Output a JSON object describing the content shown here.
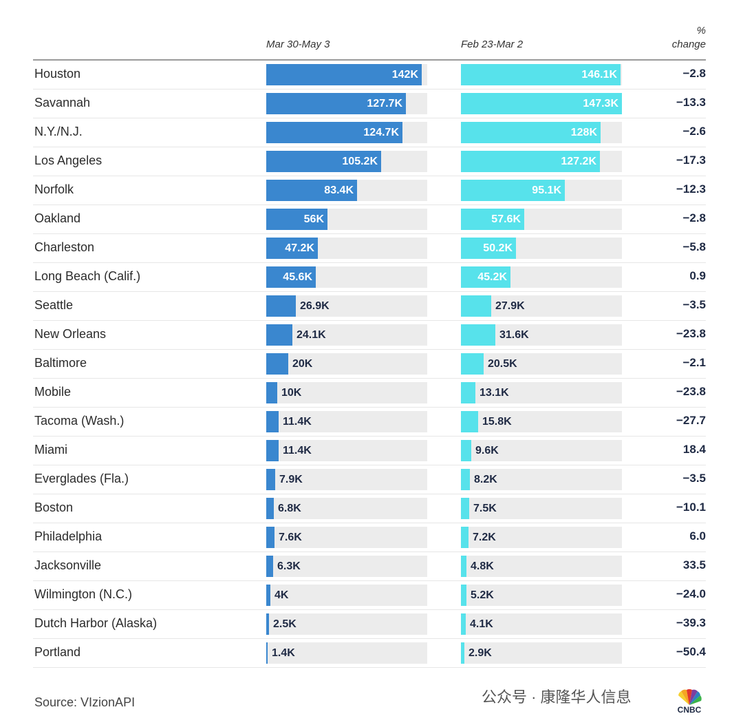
{
  "chart_data": {
    "type": "bar",
    "title": "",
    "columns": [
      "Mar 30-May 3",
      "Feb 23-Mar 2"
    ],
    "change_header": [
      "%",
      "change"
    ],
    "xlim": [
      0,
      147.3
    ],
    "categories": [
      "Houston",
      "Savannah",
      "N.Y./N.J.",
      "Los Angeles",
      "Norfolk",
      "Oakland",
      "Charleston",
      "Long Beach (Calif.)",
      "Seattle",
      "New Orleans",
      "Baltimore",
      "Mobile",
      "Tacoma (Wash.)",
      "Miami",
      "Everglades (Fla.)",
      "Boston",
      "Philadelphia",
      "Jacksonville",
      "Wilmington (N.C.)",
      "Dutch Harbor (Alaska)",
      "Portland"
    ],
    "series": [
      {
        "name": "Mar 30-May 3",
        "values": [
          142,
          127.7,
          124.7,
          105.2,
          83.4,
          56,
          47.2,
          45.6,
          26.9,
          24.1,
          20,
          10,
          11.4,
          11.4,
          7.9,
          6.8,
          7.6,
          6.3,
          4,
          2.5,
          1.4
        ],
        "labels": [
          "142K",
          "127.7K",
          "124.7K",
          "105.2K",
          "83.4K",
          "56K",
          "47.2K",
          "45.6K",
          "26.9K",
          "24.1K",
          "20K",
          "10K",
          "11.4K",
          "11.4K",
          "7.9K",
          "6.8K",
          "7.6K",
          "6.3K",
          "4K",
          "2.5K",
          "1.4K"
        ],
        "color": "#3a87cf"
      },
      {
        "name": "Feb 23-Mar 2",
        "values": [
          146.1,
          147.3,
          128,
          127.2,
          95.1,
          57.6,
          50.2,
          45.2,
          27.9,
          31.6,
          20.5,
          13.1,
          15.8,
          9.6,
          8.2,
          7.5,
          7.2,
          4.8,
          5.2,
          4.1,
          2.9
        ],
        "labels": [
          "146.1K",
          "147.3K",
          "128K",
          "127.2K",
          "95.1K",
          "57.6K",
          "50.2K",
          "45.2K",
          "27.9K",
          "31.6K",
          "20.5K",
          "13.1K",
          "15.8K",
          "9.6K",
          "8.2K",
          "7.5K",
          "7.2K",
          "4.8K",
          "5.2K",
          "4.1K",
          "2.9K"
        ],
        "color": "#57e2eb"
      }
    ],
    "pct_change": [
      "−2.8",
      "−13.3",
      "−2.6",
      "−17.3",
      "−12.3",
      "−2.8",
      "−5.8",
      "0.9",
      "−3.5",
      "−23.8",
      "−2.1",
      "−23.8",
      "−27.7",
      "18.4",
      "−3.5",
      "−10.1",
      "6.0",
      "33.5",
      "−24.0",
      "−39.3",
      "−50.4"
    ],
    "legend": "none",
    "grid": false
  },
  "source": "Source: VIzionAPI",
  "watermark": "公众号 · 康隆华人信息",
  "logo": "CNBC"
}
